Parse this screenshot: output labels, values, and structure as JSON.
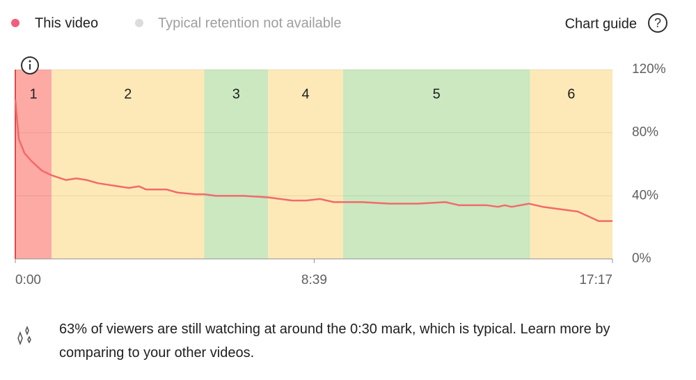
{
  "chart_data": {
    "type": "line",
    "x": [
      0,
      6,
      16,
      28,
      46,
      63,
      88,
      106,
      124,
      143,
      179,
      197,
      215,
      227,
      263,
      282,
      312,
      328,
      348,
      396,
      439,
      481,
      505,
      529,
      553,
      572,
      602,
      650,
      699,
      747,
      771,
      819,
      838,
      850,
      862,
      892,
      916,
      977,
      1013,
      1037
    ],
    "series": [
      {
        "name": "This video",
        "color": "#f0607a",
        "line_color": "#f26a6a",
        "values": [
          101,
          76,
          67,
          62,
          56,
          53,
          50,
          51,
          50,
          48,
          46,
          45,
          46,
          44,
          44,
          42,
          41,
          41,
          40,
          40,
          39,
          37,
          37,
          38,
          36,
          36,
          36,
          35,
          35,
          36,
          34,
          34,
          33,
          34,
          33,
          35,
          33,
          30,
          24,
          24
        ]
      }
    ],
    "typical_note": "Typical retention not available",
    "chart_guide": "Chart guide",
    "xlim": [
      0,
      1037
    ],
    "xticks": [
      {
        "value": 0,
        "label": "0:00"
      },
      {
        "value": 519,
        "label": "8:39"
      },
      {
        "value": 1037,
        "label": "17:17"
      }
    ],
    "ylim": [
      0,
      120
    ],
    "yticks": [
      {
        "value": 0,
        "label": "0%"
      },
      {
        "value": 40,
        "label": "40%"
      },
      {
        "value": 80,
        "label": "80%"
      },
      {
        "value": 120,
        "label": "120%"
      }
    ],
    "grid": true,
    "segments": [
      {
        "label": "1",
        "start": 0,
        "end": 63,
        "color": "#fdaaa5"
      },
      {
        "label": "2",
        "start": 63,
        "end": 328,
        "color": "#fde9b7"
      },
      {
        "label": "3",
        "start": 328,
        "end": 439,
        "color": "#cbe8c0"
      },
      {
        "label": "4",
        "start": 439,
        "end": 569,
        "color": "#fde9b7"
      },
      {
        "label": "5",
        "start": 569,
        "end": 894,
        "color": "#cbe8c0"
      },
      {
        "label": "6",
        "start": 894,
        "end": 1037,
        "color": "#fde9b7"
      }
    ],
    "insight": "63% of viewers are still watching at around the 0:30 mark, which is typical. Learn more by comparing to your other videos."
  }
}
